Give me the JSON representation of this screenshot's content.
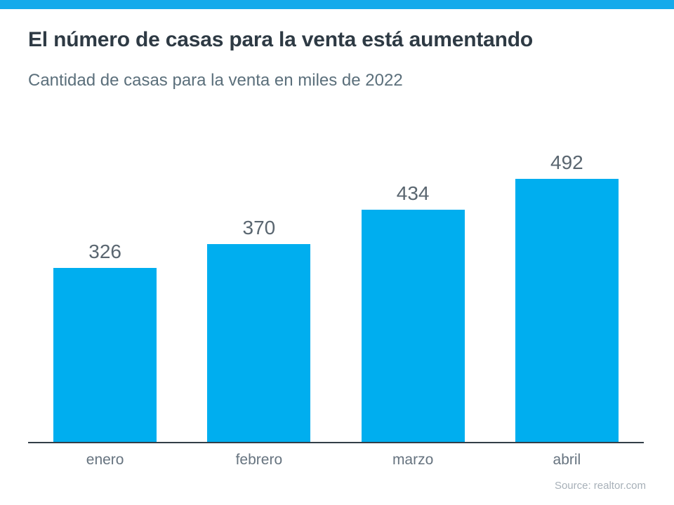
{
  "page": {
    "background": "#FFFFFF",
    "top_strip_color": "#15AAEB"
  },
  "header": {
    "title": "El número de casas para la venta está aumentando",
    "subtitle": "Cantidad de casas para la venta en miles de 2022"
  },
  "chart_data": {
    "type": "bar",
    "title": "El número de casas para la venta está aumentando",
    "subtitle": "Cantidad de casas para la venta en miles de 2022",
    "categories": [
      "enero",
      "febrero",
      "marzo",
      "abril"
    ],
    "values": [
      326,
      370,
      434,
      492
    ],
    "xlabel": "",
    "ylabel": "",
    "ylim": [
      0,
      500
    ],
    "grid": false,
    "legend": false,
    "data_labels": true,
    "bar_color": "#00AEEF",
    "value_label_color": "#5A6670",
    "category_label_color": "#66737F",
    "axis_line_color": "#333E48"
  },
  "footer": {
    "source": "Source: realtor.com"
  }
}
